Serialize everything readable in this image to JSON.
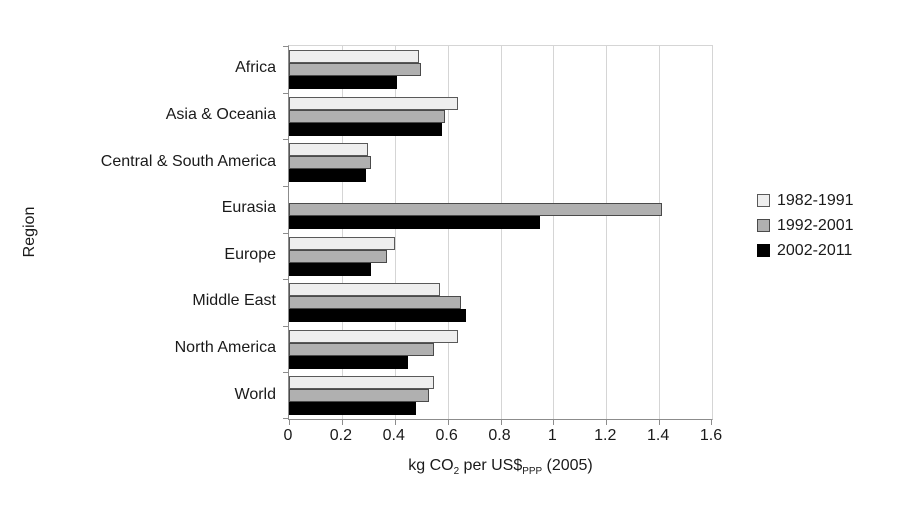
{
  "chart_data": {
    "type": "bar",
    "orientation": "horizontal",
    "xlabel": {
      "pre": "kg CO",
      "sub1": "2",
      "mid": " per US$",
      "sub2": "PPP",
      "post": " (2005)"
    },
    "ylabel": "Region",
    "xlim": [
      0,
      1.6
    ],
    "xtick_values": [
      0,
      0.2,
      0.4,
      0.6,
      0.8,
      1,
      1.2,
      1.4,
      1.6
    ],
    "xtick_labels": [
      "0",
      "0.2",
      "0.4",
      "0.6",
      "0.8",
      "1",
      "1.2",
      "1.4",
      "1.6"
    ],
    "categories": [
      "Africa",
      "Asia & Oceania",
      "Central & South America",
      "Eurasia",
      "Europe",
      "Middle East",
      "North America",
      "World"
    ],
    "series": [
      {
        "name": "1982-1991",
        "fill": "#eeeeee",
        "border": "#595959",
        "values": [
          0.49,
          0.64,
          0.3,
          null,
          0.4,
          0.57,
          0.64,
          0.55
        ]
      },
      {
        "name": "1992-2001",
        "fill": "#b0b0b0",
        "border": "#4a4a4a",
        "values": [
          0.5,
          0.59,
          0.31,
          1.41,
          0.37,
          0.65,
          0.55,
          0.53
        ]
      },
      {
        "name": "2002-2011",
        "fill": "#000000",
        "border": "#000000",
        "values": [
          0.41,
          0.58,
          0.29,
          0.95,
          0.31,
          0.67,
          0.45,
          0.48
        ]
      }
    ],
    "legend_position": "right",
    "grid": true,
    "colors": {
      "gridline": "#d5d5d5",
      "axis": "#8c8c8c",
      "text": "#1a1a1a",
      "background": "#ffffff"
    }
  }
}
